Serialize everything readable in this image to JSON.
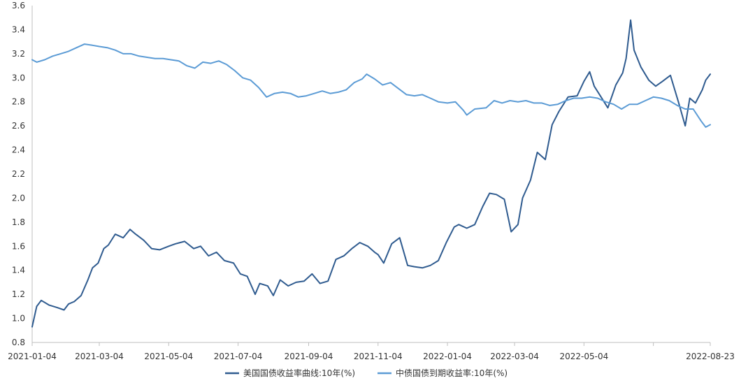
{
  "chart_data": {
    "type": "line",
    "title": "",
    "xlabel": "",
    "ylabel": "",
    "ylim": [
      0.8,
      3.6
    ],
    "y_ticks": [
      0.8,
      1.0,
      1.2,
      1.4,
      1.6,
      1.8,
      2.0,
      2.2,
      2.4,
      2.6,
      2.8,
      3.0,
      3.2,
      3.4,
      3.6
    ],
    "y_tick_labels": [
      "0.8",
      "1.0",
      "1.2",
      "1.4",
      "1.6",
      "1.8",
      "2.0",
      "2.2",
      "2.4",
      "2.6",
      "2.8",
      "3.0",
      "3.2",
      "3.4",
      "3.6"
    ],
    "x_ticks": [
      "2021-01-04",
      "2021-03-04",
      "2021-05-04",
      "2021-07-04",
      "2021-09-04",
      "2021-11-04",
      "2022-01-04",
      "2022-03-04",
      "2022-05-04",
      "2022-07-04",
      "2022-08-23"
    ],
    "x_tick_labels": [
      "2021-01-04",
      "2021-03-04",
      "2021-05-04",
      "2021-07-04",
      "2021-09-04",
      "2021-11-04",
      "2022-01-04",
      "2022-03-04",
      "2022-05-04",
      "",
      "2022-08-23"
    ],
    "grid": false,
    "legend_position": "bottom",
    "series": [
      {
        "name": "美国国债收益率曲线:10年(%)",
        "color": "#2f5b8f",
        "points": [
          [
            "2021-01-04",
            0.93
          ],
          [
            "2021-01-08",
            1.1
          ],
          [
            "2021-01-12",
            1.15
          ],
          [
            "2021-01-19",
            1.11
          ],
          [
            "2021-01-26",
            1.09
          ],
          [
            "2021-02-01",
            1.07
          ],
          [
            "2021-02-05",
            1.12
          ],
          [
            "2021-02-10",
            1.14
          ],
          [
            "2021-02-16",
            1.19
          ],
          [
            "2021-02-22",
            1.32
          ],
          [
            "2021-02-26",
            1.42
          ],
          [
            "2021-03-03",
            1.46
          ],
          [
            "2021-03-08",
            1.58
          ],
          [
            "2021-03-12",
            1.61
          ],
          [
            "2021-03-18",
            1.7
          ],
          [
            "2021-03-25",
            1.67
          ],
          [
            "2021-03-31",
            1.74
          ],
          [
            "2021-04-05",
            1.7
          ],
          [
            "2021-04-12",
            1.65
          ],
          [
            "2021-04-19",
            1.58
          ],
          [
            "2021-04-26",
            1.57
          ],
          [
            "2021-05-04",
            1.6
          ],
          [
            "2021-05-10",
            1.62
          ],
          [
            "2021-05-18",
            1.64
          ],
          [
            "2021-05-26",
            1.58
          ],
          [
            "2021-06-01",
            1.6
          ],
          [
            "2021-06-08",
            1.52
          ],
          [
            "2021-06-15",
            1.55
          ],
          [
            "2021-06-22",
            1.48
          ],
          [
            "2021-06-30",
            1.46
          ],
          [
            "2021-07-06",
            1.37
          ],
          [
            "2021-07-12",
            1.35
          ],
          [
            "2021-07-19",
            1.2
          ],
          [
            "2021-07-23",
            1.29
          ],
          [
            "2021-07-30",
            1.27
          ],
          [
            "2021-08-04",
            1.19
          ],
          [
            "2021-08-10",
            1.32
          ],
          [
            "2021-08-17",
            1.27
          ],
          [
            "2021-08-24",
            1.3
          ],
          [
            "2021-08-31",
            1.31
          ],
          [
            "2021-09-07",
            1.37
          ],
          [
            "2021-09-14",
            1.29
          ],
          [
            "2021-09-21",
            1.31
          ],
          [
            "2021-09-28",
            1.49
          ],
          [
            "2021-10-05",
            1.52
          ],
          [
            "2021-10-12",
            1.58
          ],
          [
            "2021-10-19",
            1.63
          ],
          [
            "2021-10-26",
            1.6
          ],
          [
            "2021-11-01",
            1.55
          ],
          [
            "2021-11-04",
            1.53
          ],
          [
            "2021-11-09",
            1.46
          ],
          [
            "2021-11-16",
            1.62
          ],
          [
            "2021-11-23",
            1.67
          ],
          [
            "2021-11-30",
            1.44
          ],
          [
            "2021-12-06",
            1.43
          ],
          [
            "2021-12-13",
            1.42
          ],
          [
            "2021-12-20",
            1.44
          ],
          [
            "2021-12-27",
            1.48
          ],
          [
            "2022-01-03",
            1.63
          ],
          [
            "2022-01-10",
            1.76
          ],
          [
            "2022-01-14",
            1.78
          ],
          [
            "2022-01-21",
            1.75
          ],
          [
            "2022-01-28",
            1.78
          ],
          [
            "2022-02-04",
            1.93
          ],
          [
            "2022-02-10",
            2.04
          ],
          [
            "2022-02-16",
            2.03
          ],
          [
            "2022-02-23",
            1.99
          ],
          [
            "2022-03-01",
            1.72
          ],
          [
            "2022-03-07",
            1.78
          ],
          [
            "2022-03-11",
            2.0
          ],
          [
            "2022-03-18",
            2.15
          ],
          [
            "2022-03-24",
            2.38
          ],
          [
            "2022-03-31",
            2.32
          ],
          [
            "2022-04-06",
            2.61
          ],
          [
            "2022-04-12",
            2.72
          ],
          [
            "2022-04-20",
            2.84
          ],
          [
            "2022-04-28",
            2.85
          ],
          [
            "2022-05-04",
            2.97
          ],
          [
            "2022-05-09",
            3.05
          ],
          [
            "2022-05-13",
            2.93
          ],
          [
            "2022-05-19",
            2.84
          ],
          [
            "2022-05-25",
            2.75
          ],
          [
            "2022-06-01",
            2.94
          ],
          [
            "2022-06-07",
            3.04
          ],
          [
            "2022-06-10",
            3.16
          ],
          [
            "2022-06-14",
            3.48
          ],
          [
            "2022-06-17",
            3.23
          ],
          [
            "2022-06-23",
            3.09
          ],
          [
            "2022-06-30",
            2.98
          ],
          [
            "2022-07-06",
            2.93
          ],
          [
            "2022-07-12",
            2.97
          ],
          [
            "2022-07-19",
            3.02
          ],
          [
            "2022-07-26",
            2.8
          ],
          [
            "2022-08-01",
            2.6
          ],
          [
            "2022-08-05",
            2.83
          ],
          [
            "2022-08-10",
            2.79
          ],
          [
            "2022-08-16",
            2.9
          ],
          [
            "2022-08-19",
            2.98
          ],
          [
            "2022-08-23",
            3.03
          ]
        ]
      },
      {
        "name": "中债国债到期收益率:10年(%)",
        "color": "#5b9bd5",
        "points": [
          [
            "2021-01-04",
            3.15
          ],
          [
            "2021-01-08",
            3.13
          ],
          [
            "2021-01-15",
            3.15
          ],
          [
            "2021-01-22",
            3.18
          ],
          [
            "2021-01-29",
            3.2
          ],
          [
            "2021-02-05",
            3.22
          ],
          [
            "2021-02-12",
            3.25
          ],
          [
            "2021-02-19",
            3.28
          ],
          [
            "2021-02-26",
            3.27
          ],
          [
            "2021-03-04",
            3.26
          ],
          [
            "2021-03-11",
            3.25
          ],
          [
            "2021-03-18",
            3.23
          ],
          [
            "2021-03-25",
            3.2
          ],
          [
            "2021-04-01",
            3.2
          ],
          [
            "2021-04-08",
            3.18
          ],
          [
            "2021-04-15",
            3.17
          ],
          [
            "2021-04-22",
            3.16
          ],
          [
            "2021-04-29",
            3.16
          ],
          [
            "2021-05-06",
            3.15
          ],
          [
            "2021-05-13",
            3.14
          ],
          [
            "2021-05-20",
            3.1
          ],
          [
            "2021-05-27",
            3.08
          ],
          [
            "2021-06-03",
            3.13
          ],
          [
            "2021-06-10",
            3.12
          ],
          [
            "2021-06-17",
            3.14
          ],
          [
            "2021-06-24",
            3.11
          ],
          [
            "2021-07-01",
            3.06
          ],
          [
            "2021-07-08",
            3.0
          ],
          [
            "2021-07-15",
            2.98
          ],
          [
            "2021-07-22",
            2.92
          ],
          [
            "2021-07-29",
            2.84
          ],
          [
            "2021-08-05",
            2.87
          ],
          [
            "2021-08-12",
            2.88
          ],
          [
            "2021-08-19",
            2.87
          ],
          [
            "2021-08-26",
            2.84
          ],
          [
            "2021-09-02",
            2.85
          ],
          [
            "2021-09-09",
            2.87
          ],
          [
            "2021-09-16",
            2.89
          ],
          [
            "2021-09-23",
            2.87
          ],
          [
            "2021-09-30",
            2.88
          ],
          [
            "2021-10-07",
            2.9
          ],
          [
            "2021-10-14",
            2.96
          ],
          [
            "2021-10-21",
            2.99
          ],
          [
            "2021-10-25",
            3.03
          ],
          [
            "2021-11-01",
            2.99
          ],
          [
            "2021-11-08",
            2.94
          ],
          [
            "2021-11-15",
            2.96
          ],
          [
            "2021-11-22",
            2.91
          ],
          [
            "2021-11-29",
            2.86
          ],
          [
            "2021-12-06",
            2.85
          ],
          [
            "2021-12-13",
            2.86
          ],
          [
            "2021-12-20",
            2.83
          ],
          [
            "2021-12-27",
            2.8
          ],
          [
            "2022-01-04",
            2.79
          ],
          [
            "2022-01-11",
            2.8
          ],
          [
            "2022-01-18",
            2.73
          ],
          [
            "2022-01-21",
            2.69
          ],
          [
            "2022-01-28",
            2.74
          ],
          [
            "2022-02-07",
            2.75
          ],
          [
            "2022-02-14",
            2.81
          ],
          [
            "2022-02-21",
            2.79
          ],
          [
            "2022-02-28",
            2.81
          ],
          [
            "2022-03-07",
            2.8
          ],
          [
            "2022-03-14",
            2.81
          ],
          [
            "2022-03-21",
            2.79
          ],
          [
            "2022-03-28",
            2.79
          ],
          [
            "2022-04-04",
            2.77
          ],
          [
            "2022-04-11",
            2.78
          ],
          [
            "2022-04-18",
            2.81
          ],
          [
            "2022-04-25",
            2.83
          ],
          [
            "2022-05-02",
            2.83
          ],
          [
            "2022-05-09",
            2.84
          ],
          [
            "2022-05-16",
            2.83
          ],
          [
            "2022-05-23",
            2.8
          ],
          [
            "2022-05-30",
            2.78
          ],
          [
            "2022-06-06",
            2.74
          ],
          [
            "2022-06-13",
            2.78
          ],
          [
            "2022-06-20",
            2.78
          ],
          [
            "2022-06-27",
            2.81
          ],
          [
            "2022-07-04",
            2.84
          ],
          [
            "2022-07-11",
            2.83
          ],
          [
            "2022-07-18",
            2.81
          ],
          [
            "2022-07-25",
            2.77
          ],
          [
            "2022-08-01",
            2.74
          ],
          [
            "2022-08-08",
            2.74
          ],
          [
            "2022-08-15",
            2.64
          ],
          [
            "2022-08-19",
            2.59
          ],
          [
            "2022-08-23",
            2.61
          ]
        ]
      }
    ]
  }
}
